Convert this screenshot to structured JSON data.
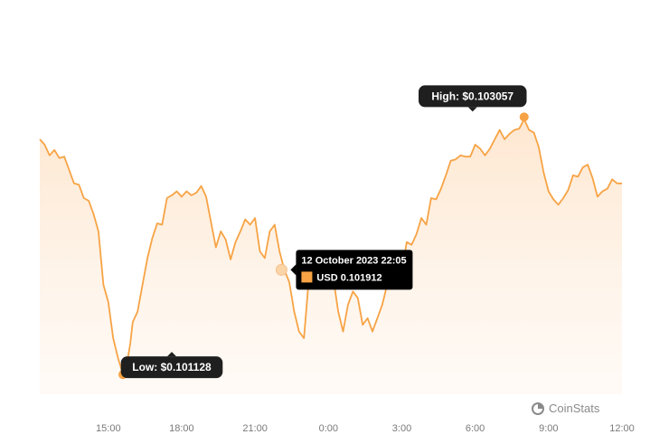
{
  "chart_data": {
    "type": "area",
    "x_ticks": [
      "15:00",
      "18:00",
      "21:00",
      "0:00",
      "3:00",
      "6:00",
      "9:00",
      "12:00"
    ],
    "x_range_hours": [
      12.2,
      36.0
    ],
    "ylim": [
      0.10098,
      0.10329
    ],
    "grid": false,
    "series": [
      {
        "x": [
          12.2,
          12.4,
          12.6,
          12.8,
          13.0,
          13.2,
          13.4,
          13.6,
          13.8,
          14.0,
          14.2,
          14.4,
          14.6,
          14.8,
          15.0,
          15.2,
          15.4,
          15.6,
          15.8,
          15.9,
          16.0,
          16.2,
          16.4,
          16.6,
          16.8,
          17.0,
          17.2,
          17.4,
          17.6,
          17.8,
          18.0,
          18.2,
          18.4,
          18.6,
          18.8,
          19.0,
          19.2,
          19.4,
          19.6,
          19.8,
          20.0,
          20.2,
          20.4,
          20.6,
          20.8,
          21.0,
          21.2,
          21.4,
          21.6,
          21.8,
          22.0,
          22.2,
          22.4,
          22.6,
          22.8,
          23.0,
          23.2,
          23.4,
          23.6,
          23.8,
          24.0,
          24.2,
          24.4,
          24.6,
          24.8,
          25.0,
          25.2,
          25.4,
          25.6,
          25.8,
          26.0,
          26.2,
          26.4,
          26.6,
          26.8,
          27.0,
          27.2,
          27.4,
          27.6,
          27.8,
          28.0,
          28.2,
          28.4,
          28.6,
          28.8,
          29.0,
          29.2,
          29.4,
          29.6,
          29.8,
          30.0,
          30.2,
          30.4,
          30.6,
          30.8,
          31.0,
          31.2,
          31.4,
          31.6,
          31.8,
          32.0,
          32.2,
          32.4,
          32.6,
          32.8,
          33.0,
          33.2,
          33.4,
          33.6,
          33.8,
          34.0,
          34.2,
          34.4,
          34.6,
          34.8,
          35.0,
          35.2,
          35.4,
          35.6,
          35.8,
          36.0
        ],
        "y": [
          0.10289,
          0.10285,
          0.10277,
          0.10281,
          0.10275,
          0.10276,
          0.10266,
          0.10256,
          0.10255,
          0.10245,
          0.10243,
          0.10233,
          0.1022,
          0.1018,
          0.10167,
          0.1014,
          0.10125,
          0.10113,
          0.10125,
          0.10136,
          0.10152,
          0.1016,
          0.1018,
          0.102,
          0.10215,
          0.10226,
          0.10225,
          0.10245,
          0.10247,
          0.1025,
          0.10246,
          0.1025,
          0.10247,
          0.10249,
          0.10254,
          0.10246,
          0.10227,
          0.10208,
          0.1022,
          0.10214,
          0.10199,
          0.10212,
          0.1022,
          0.10229,
          0.10225,
          0.1023,
          0.10205,
          0.102,
          0.1022,
          0.10225,
          0.10205,
          0.10191,
          0.10182,
          0.1016,
          0.10145,
          0.1014,
          0.10184,
          0.1019,
          0.10205,
          0.102,
          0.1019,
          0.10185,
          0.1016,
          0.10145,
          0.10165,
          0.10175,
          0.1017,
          0.1015,
          0.10155,
          0.10145,
          0.10155,
          0.10165,
          0.1018,
          0.10185,
          0.1018,
          0.1019,
          0.10212,
          0.1021,
          0.10218,
          0.1023,
          0.10225,
          0.10245,
          0.10244,
          0.10252,
          0.10262,
          0.10273,
          0.10274,
          0.10277,
          0.10276,
          0.10276,
          0.10285,
          0.10282,
          0.10277,
          0.10282,
          0.10289,
          0.10296,
          0.10289,
          0.10293,
          0.10296,
          0.10297,
          0.10304,
          0.10296,
          0.10294,
          0.10283,
          0.10264,
          0.1025,
          0.10244,
          0.1024,
          0.10245,
          0.10251,
          0.10262,
          0.10261,
          0.10268,
          0.1027,
          0.1026,
          0.10246,
          0.1025,
          0.10252,
          0.10259,
          0.10256,
          0.10256
        ]
      }
    ],
    "high": {
      "label": "High: $0.103057",
      "x": 32.0,
      "y": 0.103057
    },
    "low": {
      "label": "Low: $0.101128",
      "x": 15.6,
      "y": 0.101128
    },
    "tooltip": {
      "title": "12 October 2023 22:05",
      "value": "USD 0.101912",
      "x": 22.083,
      "y": 0.101912
    },
    "colors": {
      "line": "#f7a345",
      "fill": "#fde9d6",
      "marker": "#f7a345",
      "callout_bg": "#1f1f1f",
      "tooltip_bg": "#000000",
      "axis_text": "#7a7a7a"
    }
  },
  "brand": {
    "name": "CoinStats",
    "icon": "coinstats-logo-icon"
  }
}
